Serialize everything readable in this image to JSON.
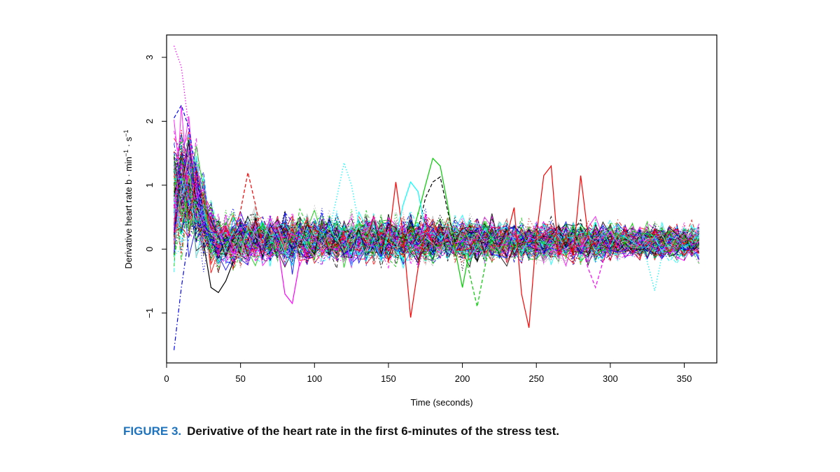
{
  "chart_data": {
    "type": "line",
    "title": "",
    "xlabel": "Time (seconds)",
    "ylabel": {
      "base": "Derivative heart rate b · min",
      "sup1": "−1",
      "mid": " · s",
      "sup2": "−1"
    },
    "xlim": [
      0,
      372
    ],
    "ylim": [
      -1.78,
      3.35
    ],
    "x_ticks": [
      0,
      50,
      100,
      150,
      200,
      250,
      300,
      350
    ],
    "x_tick_labels": [
      "0",
      "50",
      "100",
      "150",
      "200",
      "250",
      "300",
      "350"
    ],
    "y_ticks": [
      -1,
      0,
      1,
      2,
      3
    ],
    "y_tick_labels": [
      "−1",
      "0",
      "1",
      "2",
      "3"
    ],
    "x": [
      5,
      10,
      15,
      20,
      25,
      30,
      35,
      40,
      45,
      50,
      55,
      60,
      65,
      70,
      75,
      80,
      85,
      90,
      95,
      100,
      105,
      110,
      115,
      120,
      125,
      130,
      135,
      140,
      145,
      150,
      155,
      160,
      165,
      170,
      175,
      180,
      185,
      190,
      195,
      200,
      205,
      210,
      215,
      220,
      225,
      230,
      235,
      240,
      245,
      250,
      255,
      260,
      265,
      270,
      275,
      280,
      285,
      290,
      295,
      300,
      305,
      310,
      315,
      320,
      325,
      330,
      335,
      340,
      345,
      350,
      355,
      360
    ],
    "series_count": 150,
    "series_description": "Individual patient curves (many overlapping multicolored solid, dashed and dotted lines). Values are approximate readings of the visible band; most curves start between 0 and 1.8 at 5 s, drop to about 0 by 35 s, and then oscillate roughly between -0.5 and 0.8 until 360 s.",
    "band_mean": [
      0.85,
      1.0,
      0.95,
      0.75,
      0.45,
      0.25,
      0.12,
      0.1,
      0.12,
      0.14,
      0.15,
      0.15,
      0.15,
      0.15,
      0.15,
      0.15,
      0.15,
      0.15,
      0.15,
      0.15,
      0.15,
      0.15,
      0.15,
      0.15,
      0.15,
      0.15,
      0.15,
      0.15,
      0.15,
      0.15,
      0.15,
      0.15,
      0.15,
      0.15,
      0.14,
      0.14,
      0.14,
      0.14,
      0.14,
      0.14,
      0.14,
      0.14,
      0.13,
      0.13,
      0.13,
      0.13,
      0.13,
      0.13,
      0.12,
      0.12,
      0.12,
      0.12,
      0.12,
      0.12,
      0.12,
      0.12,
      0.12,
      0.12,
      0.12,
      0.12,
      0.11,
      0.11,
      0.11,
      0.11,
      0.11,
      0.11,
      0.11,
      0.11,
      0.11,
      0.11,
      0.11,
      0.11
    ],
    "band_spread": [
      0.65,
      0.6,
      0.55,
      0.5,
      0.4,
      0.3,
      0.25,
      0.24,
      0.24,
      0.24,
      0.24,
      0.24,
      0.24,
      0.24,
      0.24,
      0.24,
      0.24,
      0.24,
      0.24,
      0.24,
      0.23,
      0.23,
      0.23,
      0.23,
      0.23,
      0.23,
      0.23,
      0.23,
      0.23,
      0.23,
      0.22,
      0.22,
      0.22,
      0.22,
      0.22,
      0.22,
      0.21,
      0.21,
      0.21,
      0.21,
      0.21,
      0.21,
      0.2,
      0.2,
      0.2,
      0.2,
      0.2,
      0.2,
      0.19,
      0.19,
      0.19,
      0.19,
      0.19,
      0.19,
      0.18,
      0.18,
      0.18,
      0.18,
      0.18,
      0.18,
      0.17,
      0.17,
      0.17,
      0.17,
      0.17,
      0.17,
      0.17,
      0.17,
      0.17,
      0.17,
      0.17,
      0.17
    ],
    "highlighted_series": [
      {
        "name": "magenta-dotted-peak",
        "color": "#ff00ff",
        "style": "dotted",
        "x": [
          5,
          10,
          15,
          20,
          25,
          30,
          35,
          40
        ],
        "values": [
          3.18,
          2.85,
          1.9,
          0.9,
          0.35,
          0.15,
          0.05,
          0.1
        ]
      },
      {
        "name": "blue-dashdot-dip",
        "color": "#0000ff",
        "style": "dashdot",
        "x": [
          5,
          10,
          15,
          20,
          25,
          30,
          35,
          40
        ],
        "values": [
          -1.58,
          -0.6,
          0.2,
          0.4,
          0.3,
          0.15,
          0.1,
          0.05
        ]
      },
      {
        "name": "blue-dashed-early",
        "color": "#0000ff",
        "style": "dashed",
        "x": [
          5,
          10,
          15,
          20,
          25,
          30,
          35
        ],
        "values": [
          2.05,
          2.25,
          1.9,
          1.2,
          0.5,
          0.1,
          0.0
        ]
      },
      {
        "name": "green-solid-180",
        "color": "#00cd00",
        "style": "solid",
        "x": [
          165,
          170,
          175,
          180,
          185,
          190,
          195,
          200,
          205
        ],
        "values": [
          0.15,
          0.55,
          1.0,
          1.42,
          1.3,
          0.7,
          0.0,
          -0.6,
          0.0
        ]
      },
      {
        "name": "red-solid-165",
        "color": "#ff0000",
        "style": "solid",
        "x": [
          150,
          155,
          160,
          165,
          170,
          175,
          180
        ],
        "values": [
          0.1,
          1.05,
          0.2,
          -1.07,
          -0.3,
          0.3,
          0.1
        ]
      },
      {
        "name": "red-solid-245",
        "color": "#ff0000",
        "style": "solid",
        "x": [
          230,
          235,
          240,
          245,
          250,
          255,
          260,
          265,
          270,
          275,
          280,
          285,
          290
        ],
        "values": [
          0.2,
          0.65,
          -0.7,
          -1.23,
          0.2,
          1.15,
          1.3,
          -0.1,
          0.2,
          -0.1,
          1.15,
          0.2,
          -0.1
        ]
      },
      {
        "name": "black-dashed-185",
        "color": "#000000",
        "style": "dashed",
        "x": [
          170,
          175,
          180,
          185,
          190,
          195
        ],
        "values": [
          0.3,
          0.8,
          1.05,
          1.13,
          0.6,
          0.1
        ]
      },
      {
        "name": "black-solid-dip",
        "color": "#000000",
        "style": "solid",
        "x": [
          25,
          30,
          35,
          40,
          45
        ],
        "values": [
          0.1,
          -0.6,
          -0.68,
          -0.5,
          -0.2
        ]
      },
      {
        "name": "cyan-dotted-120",
        "color": "#00ffff",
        "style": "dotted",
        "x": [
          110,
          115,
          120,
          125,
          130
        ],
        "values": [
          0.3,
          0.8,
          1.35,
          1.0,
          0.4
        ]
      },
      {
        "name": "red-dashed-60",
        "color": "#ff0000",
        "style": "dashed",
        "x": [
          45,
          50,
          55,
          60,
          65
        ],
        "values": [
          0.2,
          0.6,
          1.2,
          0.7,
          0.1
        ]
      },
      {
        "name": "magenta-solid-85",
        "color": "#ff00ff",
        "style": "solid",
        "x": [
          75,
          80,
          85,
          90
        ],
        "values": [
          0.1,
          -0.7,
          -0.85,
          -0.2
        ]
      },
      {
        "name": "magenta-dashed-290",
        "color": "#ff00ff",
        "style": "dashed",
        "x": [
          280,
          285,
          290,
          295,
          300
        ],
        "values": [
          0.1,
          -0.3,
          -0.6,
          -0.2,
          0.1
        ]
      },
      {
        "name": "cyan-dotted-330",
        "color": "#00ffff",
        "style": "dotted",
        "x": [
          320,
          325,
          330,
          335,
          340
        ],
        "values": [
          0.1,
          -0.2,
          -0.65,
          -0.1,
          0.2
        ]
      },
      {
        "name": "green-dashed-210",
        "color": "#00cd00",
        "style": "dashed",
        "x": [
          200,
          205,
          210,
          215,
          220
        ],
        "values": [
          0.1,
          -0.4,
          -0.9,
          -0.3,
          0.2
        ]
      },
      {
        "name": "cyan-solid-165",
        "color": "#00ffff",
        "style": "solid",
        "x": [
          155,
          160,
          165,
          170,
          175
        ],
        "values": [
          0.2,
          0.7,
          1.05,
          0.9,
          0.3
        ]
      }
    ],
    "palette": [
      "#000000",
      "#ff0000",
      "#00cd00",
      "#0000ff",
      "#00ffff",
      "#ff00ff",
      "#bebebe"
    ],
    "grid": false,
    "legend": "none"
  },
  "caption": {
    "label": "FIGURE 3.",
    "text": "Derivative of the heart rate in the first 6-minutes of the stress test."
  }
}
